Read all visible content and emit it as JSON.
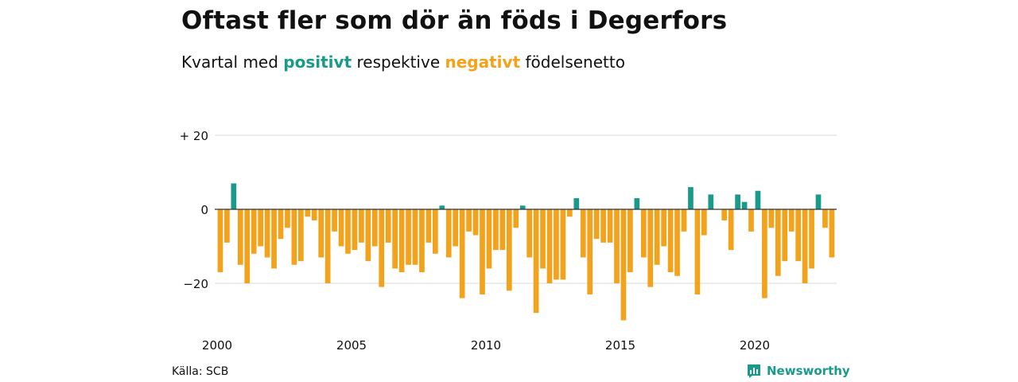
{
  "header": {
    "title": "Oftast fler som dör än föds i Degerfors",
    "subtitle_pre": "Kvartal med",
    "subtitle_pos": "positivt",
    "subtitle_mid": "respektive",
    "subtitle_neg": "negativt",
    "subtitle_post": "födelsenetto"
  },
  "footer": {
    "source": "Källa: SCB",
    "brand": "Newsworthy"
  },
  "colors": {
    "positive": "#1a9a8a",
    "negative": "#f3a21b",
    "grid": "#d9d9d9",
    "zero": "#333333"
  },
  "chart_data": {
    "type": "bar",
    "x_start_year": 2000,
    "quarter_step": 0.25,
    "ylim": [
      -32,
      22
    ],
    "y_ticks": [
      20,
      0,
      -20
    ],
    "y_tick_labels": [
      "+ 20",
      "0",
      "−20"
    ],
    "x_ticks": [
      2000,
      2005,
      2010,
      2015,
      2020
    ],
    "x_tick_labels": [
      "2000",
      "2005",
      "2010",
      "2015",
      "2020"
    ],
    "values": [
      -17,
      -9,
      7,
      -15,
      -20,
      -12,
      -10,
      -13,
      -16,
      -8,
      -5,
      -15,
      -14,
      -2,
      -3,
      -13,
      -20,
      -6,
      -10,
      -12,
      -11,
      -9,
      -14,
      -10,
      -21,
      -9,
      -16,
      -17,
      -15,
      -15,
      -17,
      -9,
      -12,
      1,
      -13,
      -10,
      -24,
      -6,
      -7,
      -23,
      -16,
      -11,
      -11,
      -22,
      -5,
      1,
      -13,
      -28,
      -16,
      -20,
      -19,
      -19,
      -2,
      3,
      -13,
      -23,
      -8,
      -9,
      -9,
      -20,
      -30,
      -17,
      3,
      -13,
      -21,
      -15,
      -10,
      -17,
      -18,
      -6,
      6,
      -23,
      -7,
      4,
      0,
      -3,
      -11,
      4,
      2,
      -6,
      5,
      -24,
      -5,
      -18,
      -14,
      -6,
      -14,
      -20,
      -16,
      4,
      -5,
      -13
    ]
  }
}
